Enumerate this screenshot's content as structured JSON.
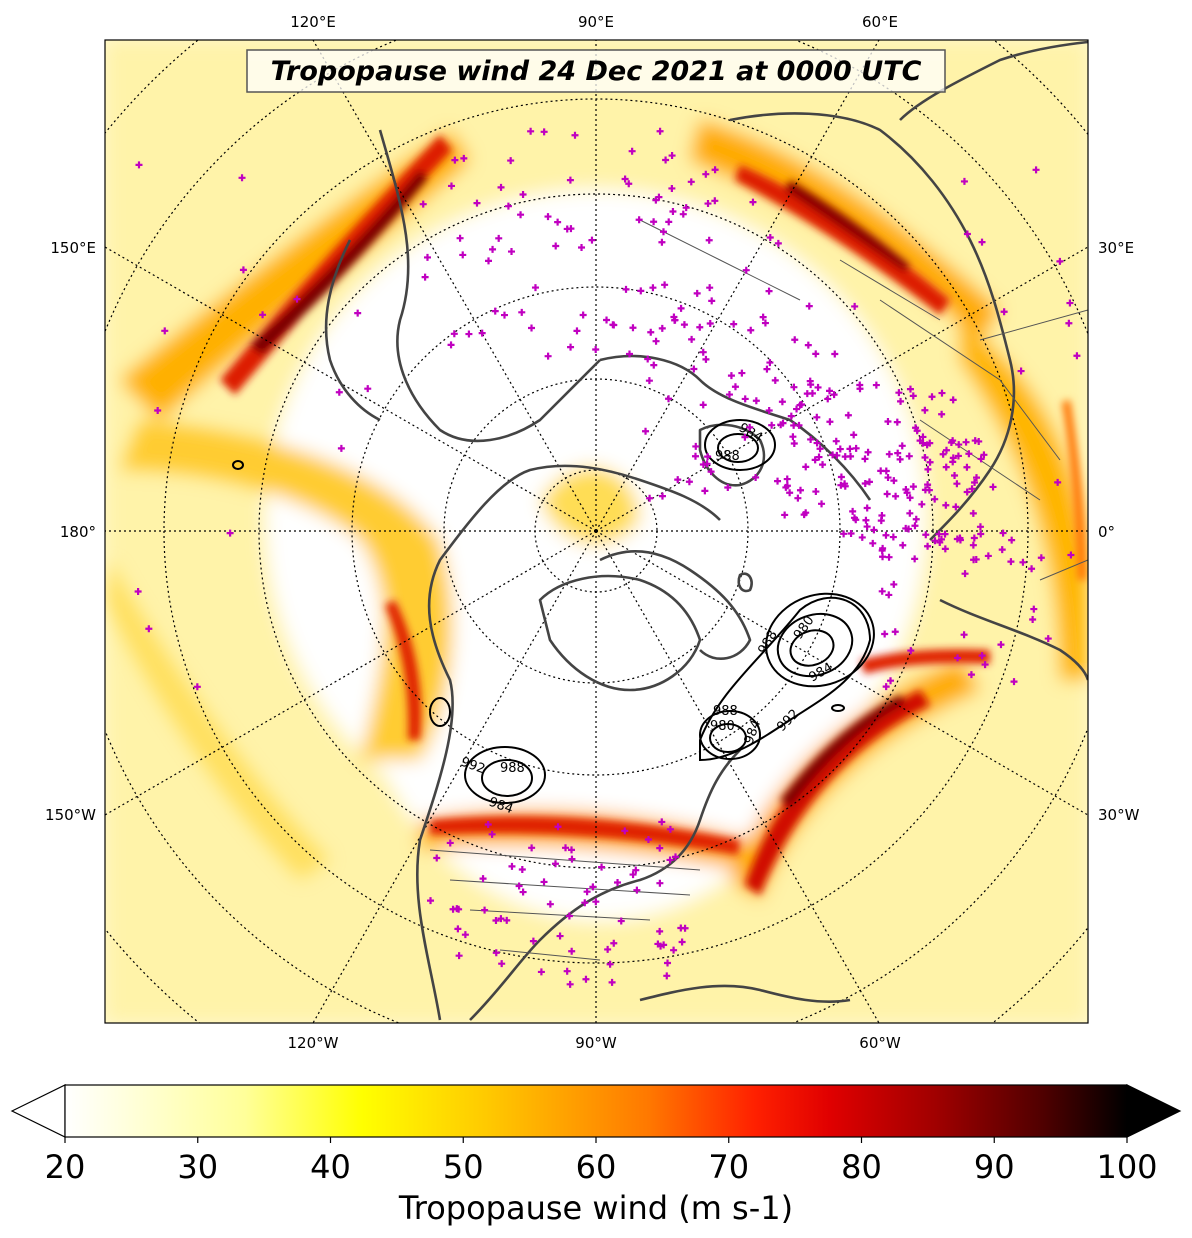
{
  "map": {
    "title": "Tropopause wind 24 Dec 2021 at 0000 UTC",
    "projection": "north-polar-stereographic",
    "central_longitude": -90,
    "top_lon_labels": [
      "120°E",
      "90°E",
      "60°E"
    ],
    "bottom_lon_labels": [
      "120°W",
      "90°W",
      "60°W"
    ],
    "left_lon_labels": [
      "150°E",
      "180°",
      "150°W"
    ],
    "right_lon_labels": [
      "30°E",
      "0°",
      "30°W"
    ],
    "layers": {
      "wind_fill_colormap": "hot_r",
      "observation_marker": "plus",
      "observation_color": "#c000c0",
      "coastline_color": "#404040",
      "contour_color": "#000000"
    },
    "pressure_contour_labels": [
      "988",
      "980",
      "984",
      "992",
      "988",
      "980",
      "984",
      "984",
      "988",
      "992",
      "988",
      "984",
      "988",
      "992"
    ]
  },
  "colorbar": {
    "label": "Tropopause wind (m s-1)",
    "ticks": [
      "20",
      "30",
      "40",
      "50",
      "60",
      "70",
      "80",
      "90",
      "100"
    ],
    "min": 20,
    "max": 100,
    "extend": "both",
    "colors": [
      "#ffffff",
      "#ffff80",
      "#ffff00",
      "#ffd000",
      "#ff9000",
      "#ff5000",
      "#ff0000",
      "#c00000",
      "#800000",
      "#400000",
      "#000000"
    ]
  }
}
